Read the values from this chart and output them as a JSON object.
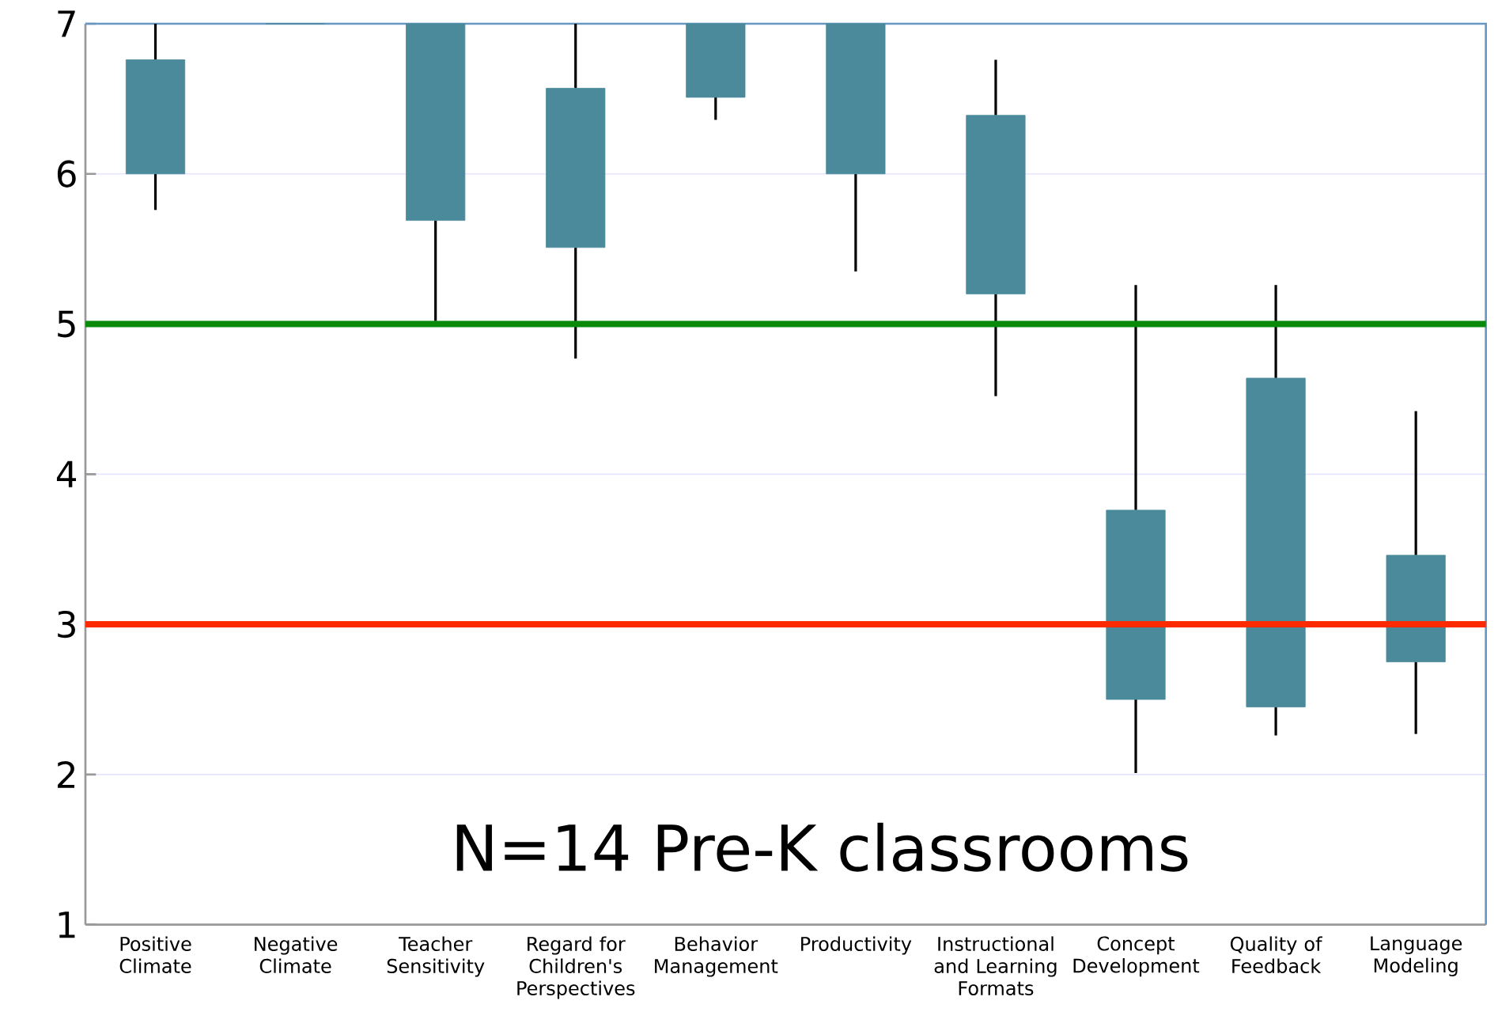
{
  "chart_data": {
    "type": "box",
    "categories": [
      "Positive Climate",
      "Negative Climate",
      "Teacher Sensitivity",
      "Regard for Children's Perspectives",
      "Behavior Management",
      "Productivity",
      "Instructional and Learning Formats",
      "Concept Development",
      "Quality of Feedback",
      "Language Modeling"
    ],
    "boxes": [
      {
        "low": 5.76,
        "q1": 6.0,
        "q3": 6.76,
        "high": 7
      },
      {
        "low": 7,
        "q1": 7,
        "q3": 7,
        "high": 7
      },
      {
        "low": 5.02,
        "q1": 5.69,
        "q3": 7,
        "high": 7
      },
      {
        "low": 4.77,
        "q1": 5.51,
        "q3": 6.57,
        "high": 7
      },
      {
        "low": 6.36,
        "q1": 6.51,
        "q3": 7,
        "high": 7
      },
      {
        "low": 5.35,
        "q1": 6.0,
        "q3": 7,
        "high": 7
      },
      {
        "low": 4.52,
        "q1": 5.2,
        "q3": 6.39,
        "high": 6.76
      },
      {
        "low": 2.01,
        "q1": 2.5,
        "q3": 3.76,
        "high": 5.26
      },
      {
        "low": 2.26,
        "q1": 2.45,
        "q3": 4.64,
        "high": 5.26
      },
      {
        "low": 2.27,
        "q1": 2.75,
        "q3": 3.46,
        "high": 4.42
      }
    ],
    "color": "#4a8a9b",
    "ylim": [
      1,
      7
    ],
    "yticks": [
      1,
      2,
      3,
      4,
      5,
      6,
      7
    ],
    "grid": "y",
    "ref_lines": [
      {
        "axis": "y",
        "value": 5,
        "color": "#0a8a0a"
      },
      {
        "axis": "y",
        "value": 3,
        "color": "#ff2a00"
      }
    ],
    "annotations": [
      "N=14 Pre-K classrooms"
    ]
  }
}
